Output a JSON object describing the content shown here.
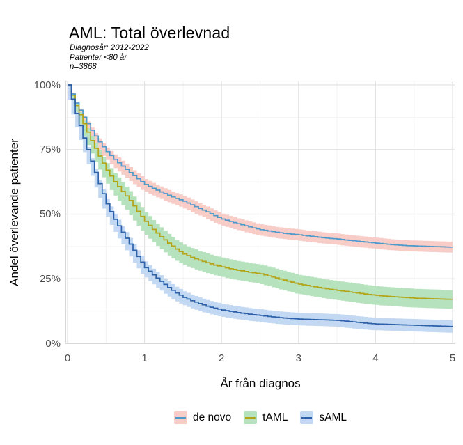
{
  "chart_data": {
    "type": "line",
    "subtype": "kaplan-meier-step-with-ci-bands",
    "title": "AML: Total överlevnad",
    "subtitle": [
      "Diagnosår: 2012-2022",
      "Patienter <80 år",
      "n=3868"
    ],
    "xlabel": "År från diagnos",
    "ylabel": "Andel överlevande patienter",
    "xlim": [
      0,
      5
    ],
    "ylim": [
      0,
      100
    ],
    "x_tick_values": [
      0,
      1,
      2,
      3,
      4,
      5
    ],
    "x_tick_labels": [
      "0",
      "1",
      "2",
      "3",
      "4",
      "5"
    ],
    "y_tick_values": [
      0,
      25,
      50,
      75,
      100
    ],
    "y_tick_labels": [
      "0%",
      "25%",
      "50%",
      "75%",
      "100%"
    ],
    "grid": "major+minor",
    "legend_position": "bottom",
    "colors": {
      "grid_major": "#e3e3e3",
      "grid_minor": "#f2f2f2",
      "panel_border": "#d8d8d8",
      "tick_text": "#4d4d4d"
    },
    "x": [
      0,
      0.1,
      0.2,
      0.3,
      0.4,
      0.5,
      0.6,
      0.7,
      0.8,
      0.9,
      1,
      1.1,
      1.2,
      1.3,
      1.4,
      1.5,
      1.6,
      1.7,
      1.8,
      1.9,
      2,
      2.1,
      2.2,
      2.3,
      2.4,
      2.5,
      2.6,
      2.7,
      2.8,
      2.9,
      3,
      3.1,
      3.2,
      3.3,
      3.4,
      3.5,
      3.6,
      3.7,
      3.8,
      3.9,
      4,
      4.1,
      4.2,
      4.3,
      4.4,
      4.5,
      4.6,
      4.7,
      4.8,
      4.9,
      5
    ],
    "series": [
      {
        "name": "de novo",
        "line_color": "#4e9acb",
        "band_color": "#f8cdc8",
        "ci_halfwidth": 2.1,
        "values": [
          100,
          93,
          87.5,
          82.5,
          78,
          74.2,
          71.2,
          68.6,
          66.1,
          63.7,
          61.5,
          60.0,
          58.6,
          57.3,
          56.1,
          55.0,
          53.6,
          52.2,
          50.9,
          49.4,
          48.1,
          47.2,
          46.3,
          45.5,
          44.7,
          44.0,
          43.5,
          43.0,
          42.6,
          42.3,
          42.0,
          41.6,
          41.3,
          40.9,
          40.6,
          40.4,
          40.0,
          39.7,
          39.4,
          39.1,
          38.8,
          38.5,
          38.2,
          38.0,
          37.8,
          37.7,
          37.6,
          37.5,
          37.4,
          37.3,
          37.2
        ]
      },
      {
        "name": "tAML",
        "line_color": "#b4a418",
        "band_color": "#b6e2bd",
        "ci_halfwidth": 3.6,
        "values": [
          100,
          92,
          85,
          78.5,
          72.5,
          67.0,
          62.6,
          58.8,
          55.3,
          51.1,
          47.2,
          44.1,
          41.3,
          38.8,
          36.5,
          34.6,
          33.3,
          32.2,
          31.2,
          30.3,
          29.6,
          28.9,
          28.3,
          27.8,
          27.3,
          26.9,
          26.1,
          25.3,
          24.5,
          23.7,
          22.9,
          22.4,
          21.9,
          21.4,
          20.9,
          20.5,
          20.1,
          19.7,
          19.3,
          18.9,
          18.6,
          18.3,
          18.1,
          17.9,
          17.7,
          17.5,
          17.4,
          17.3,
          17.2,
          17.1,
          17.0
        ]
      },
      {
        "name": "sAML",
        "line_color": "#2d62ab",
        "band_color": "#c3d8f2",
        "ci_halfwidth": 2.4,
        "values": [
          100,
          89,
          79.5,
          70.5,
          61.8,
          54.0,
          48.0,
          43.0,
          38.4,
          33.6,
          29.3,
          26.5,
          24.0,
          21.6,
          19.5,
          17.8,
          16.5,
          15.4,
          14.4,
          13.6,
          12.9,
          12.4,
          11.9,
          11.5,
          11.1,
          10.8,
          10.4,
          10.1,
          9.8,
          9.6,
          9.4,
          9.3,
          9.2,
          9.1,
          9.0,
          8.9,
          8.6,
          8.3,
          8.0,
          7.7,
          7.5,
          7.4,
          7.3,
          7.2,
          7.1,
          7.0,
          6.9,
          6.8,
          6.7,
          6.6,
          6.5
        ]
      }
    ]
  }
}
